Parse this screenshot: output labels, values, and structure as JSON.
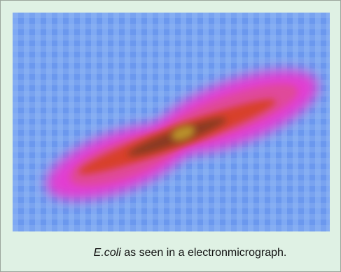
{
  "figure": {
    "caption": {
      "species": "E.coli",
      "text": "as seen in a electronmicrograph."
    }
  }
}
